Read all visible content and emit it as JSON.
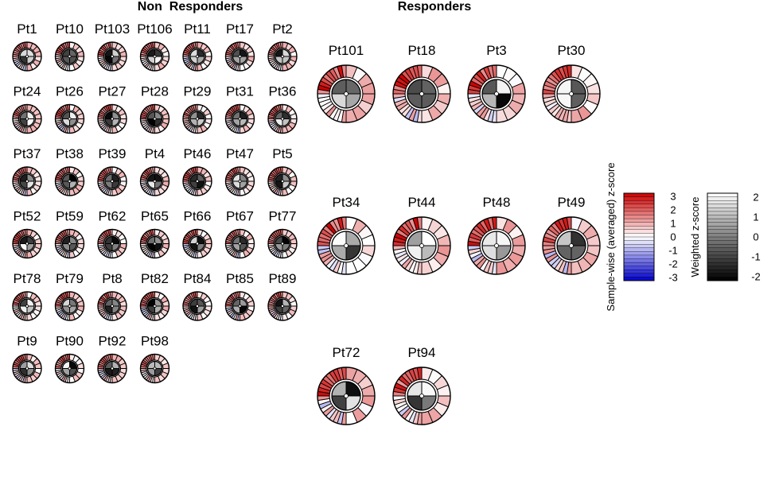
{
  "chart_data": {
    "type": "radial-heatmap-grid",
    "groups": [
      {
        "title": "Non  Responders",
        "samples": [
          "Pt1",
          "Pt10",
          "Pt103",
          "Pt106",
          "Pt11",
          "Pt17",
          "Pt2",
          "Pt24",
          "Pt26",
          "Pt27",
          "Pt28",
          "Pt29",
          "Pt31",
          "Pt36",
          "Pt37",
          "Pt38",
          "Pt39",
          "Pt4",
          "Pt46",
          "Pt47",
          "Pt5",
          "Pt52",
          "Pt59",
          "Pt62",
          "Pt65",
          "Pt66",
          "Pt67",
          "Pt77",
          "Pt78",
          "Pt79",
          "Pt8",
          "Pt82",
          "Pt84",
          "Pt85",
          "Pt89",
          "Pt9",
          "Pt90",
          "Pt92",
          "Pt98"
        ]
      },
      {
        "title": "Responders",
        "samples": [
          "Pt101",
          "Pt18",
          "Pt3",
          "Pt30",
          "Pt34",
          "Pt44",
          "Pt48",
          "Pt49",
          "Pt72",
          "Pt94"
        ]
      }
    ],
    "legends": [
      {
        "title": "Sample-wise (averaged) z-score",
        "ticks": [
          "3",
          "2",
          "1",
          "0",
          "-1",
          "-2",
          "-3"
        ],
        "range": [
          -3,
          3
        ],
        "colors": [
          "#cc0000",
          "#ffffff",
          "#0000cc"
        ]
      },
      {
        "title": "Weighted z-score",
        "ticks": [
          "2",
          "1",
          "0",
          "-1",
          "-2"
        ],
        "range": [
          -2,
          2
        ],
        "colors": [
          "#ffffff",
          "#000000"
        ]
      }
    ]
  }
}
